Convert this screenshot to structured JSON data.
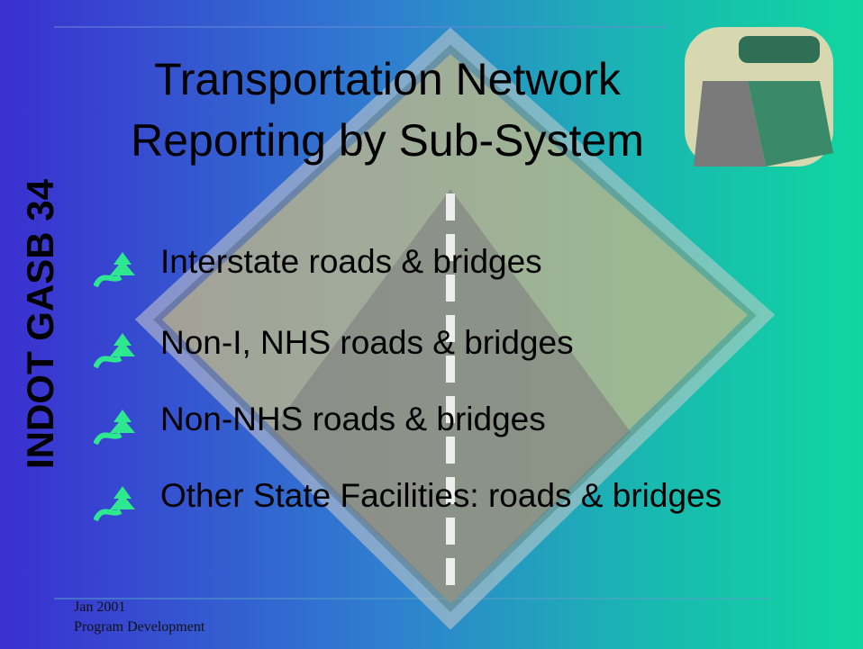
{
  "title": [
    "Transportation Network",
    "Reporting by Sub-System"
  ],
  "side_label": "INDOT  GASB 34",
  "bullets": [
    "Interstate roads & bridges",
    "Non-I, NHS roads & bridges",
    "Non-NHS roads & bridges",
    "Other State Facilities: roads & bridges"
  ],
  "footer": [
    "Jan 2001",
    "Program Development"
  ]
}
